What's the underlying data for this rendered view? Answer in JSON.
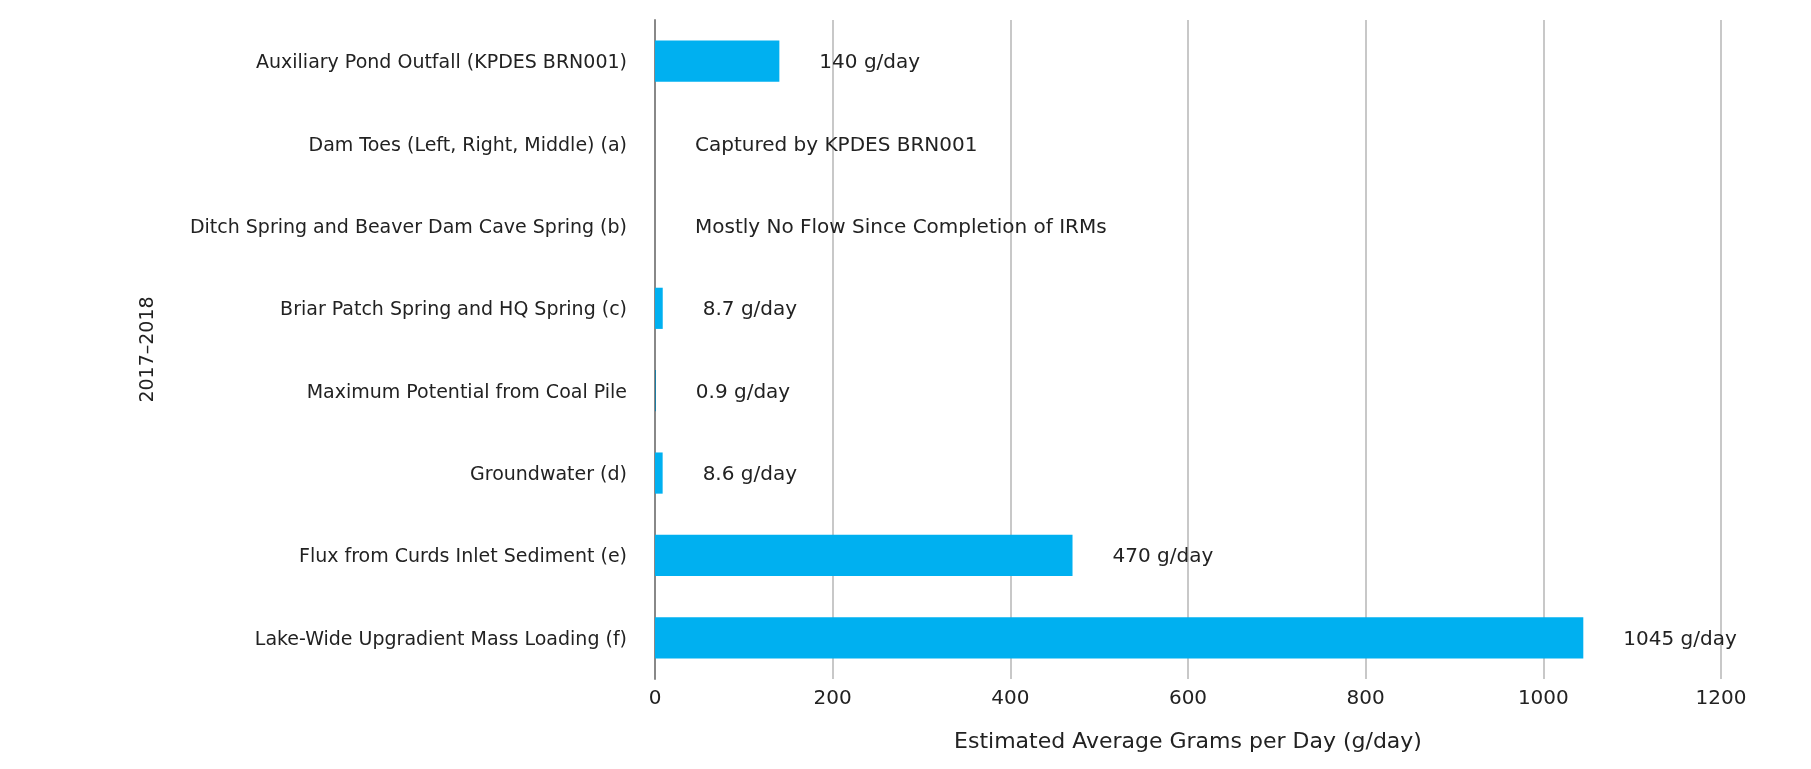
{
  "chart_data": {
    "type": "bar",
    "orientation": "horizontal",
    "xlabel": "Estimated Average Grams per Day (g/day)",
    "ylabel": "2017–2018",
    "categories": [
      "Auxiliary Pond Outfall (KPDES BRN001)",
      "Dam Toes (Left, Right, Middle) (a)",
      "Ditch Spring and Beaver Dam Cave Spring (b)",
      "Briar Patch Spring and HQ Spring (c)",
      "Maximum Potential from Coal Pile",
      "Groundwater (d)",
      "Flux from Curds Inlet Sediment (e)",
      "Lake-Wide Upgradient Mass Loading (f)"
    ],
    "values": [
      140,
      0,
      0,
      8.7,
      0.9,
      8.6,
      470,
      1045
    ],
    "colors": [
      "#00b0f0",
      "#000000",
      "#000000",
      "#00b0f0",
      "#0079a8",
      "#00b0f0",
      "#00b0f0",
      "#00b0f0"
    ],
    "value_labels": [
      "140 g/day",
      "Captured by KPDES BRN001",
      "Mostly No Flow Since Completion of IRMs",
      "8.7 g/day",
      "0.9 g/day",
      "8.6 g/day",
      "470 g/day",
      "1045 g/day"
    ],
    "xlim": [
      0,
      1200
    ],
    "xticks": [
      0,
      200,
      400,
      600,
      800,
      1000,
      1200
    ],
    "grid": "x"
  }
}
